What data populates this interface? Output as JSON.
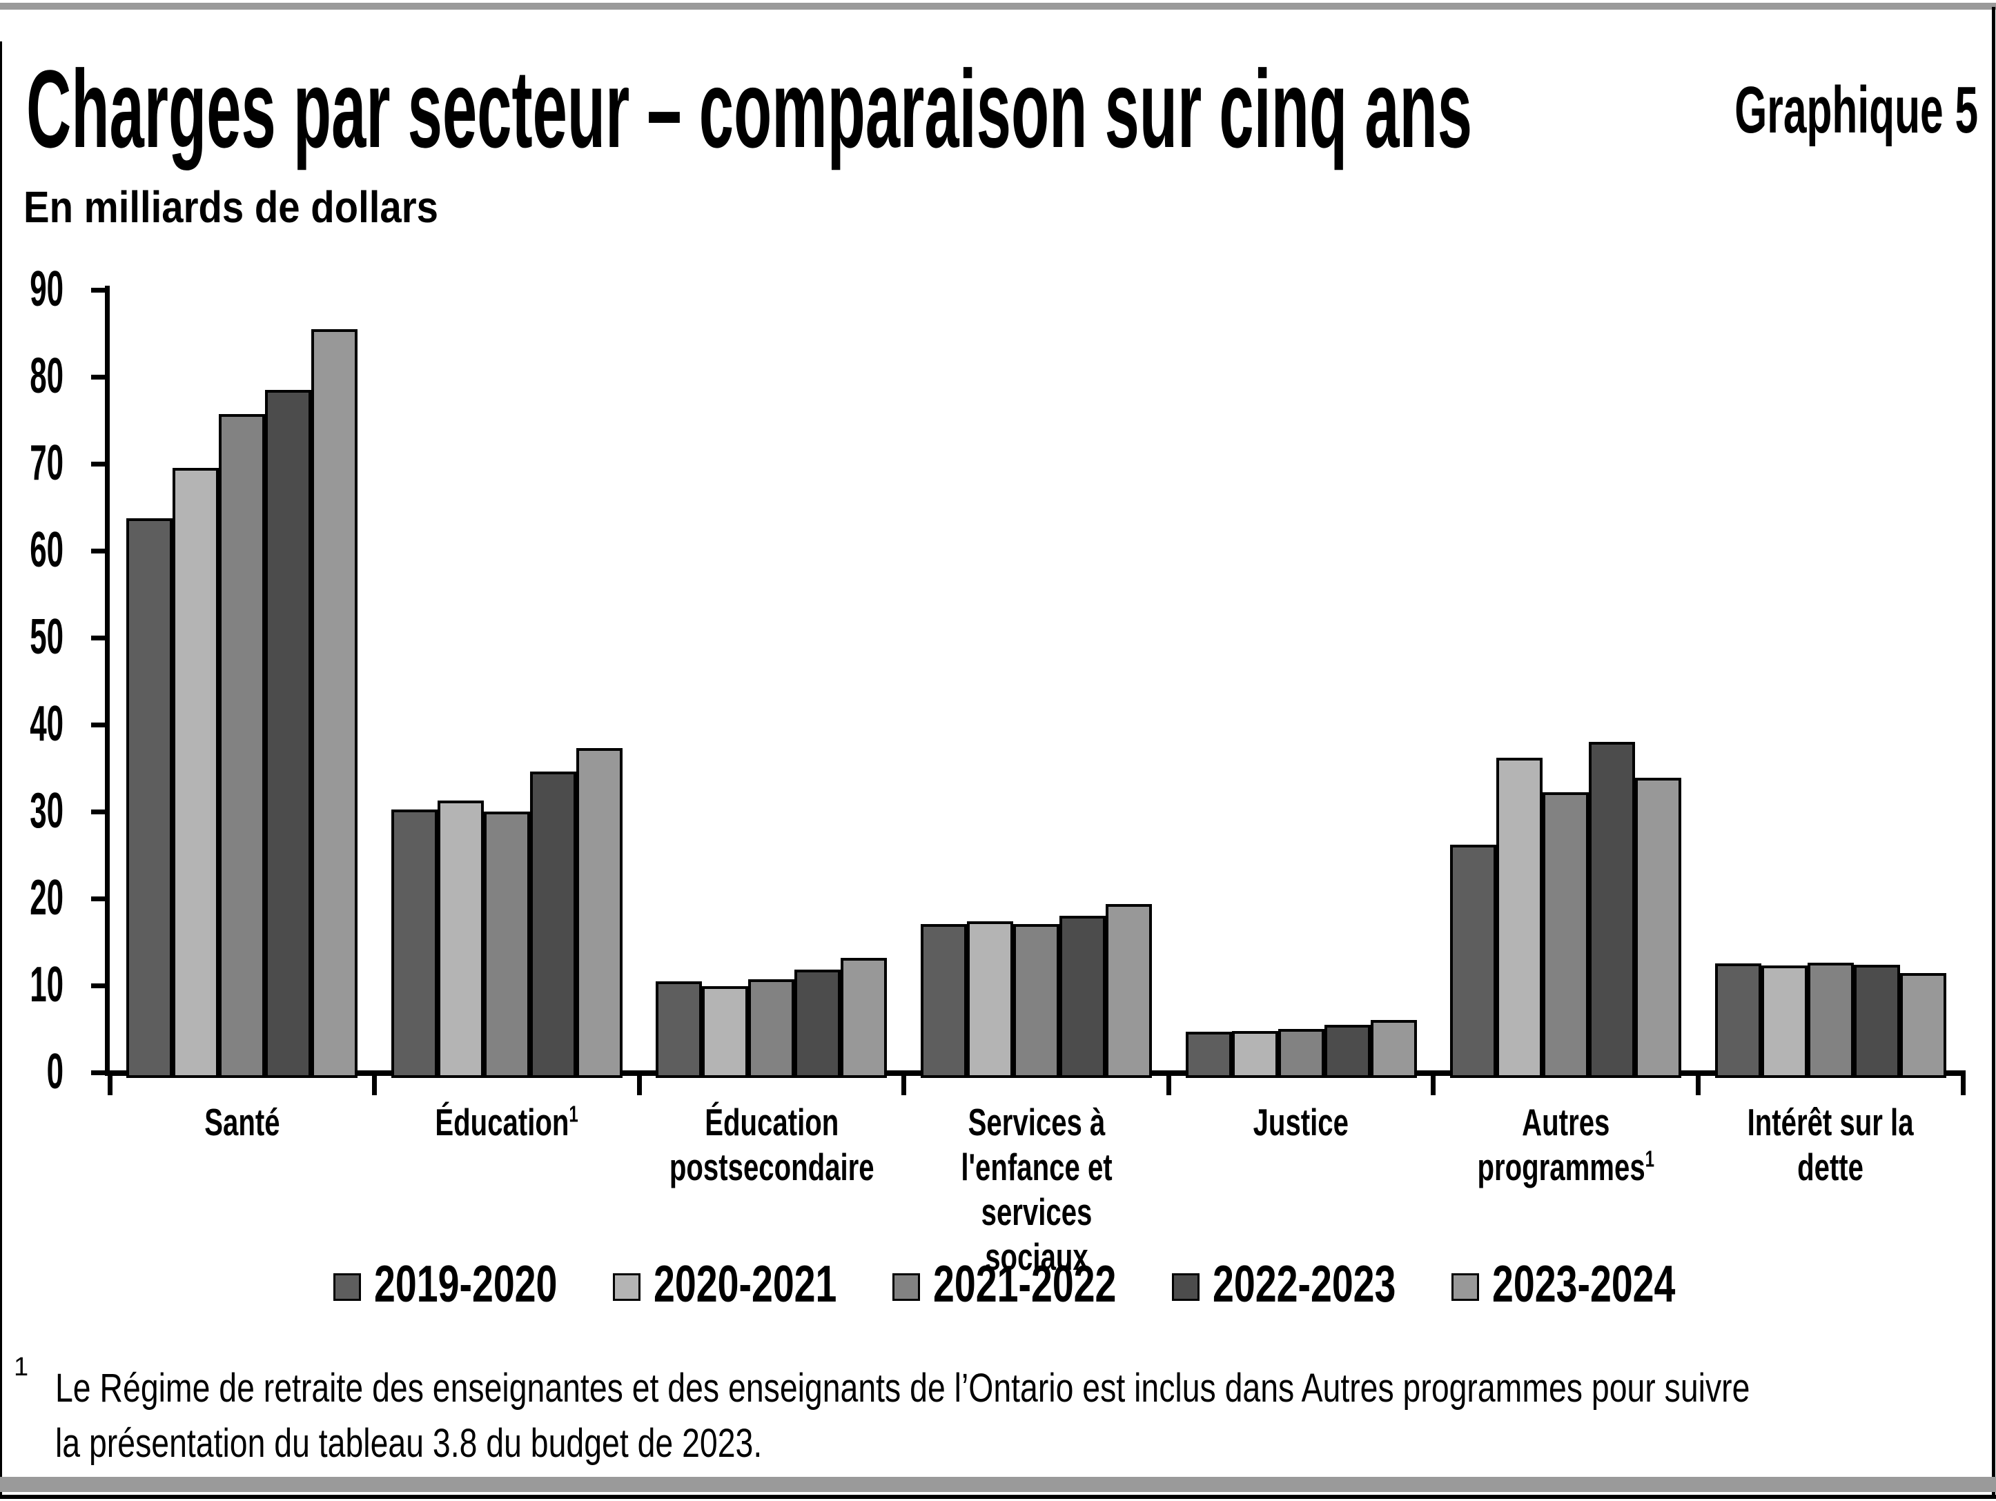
{
  "page": {
    "background": "#ffffff",
    "band_color": "#9a9a9a",
    "frame_color": "#000000"
  },
  "header": {
    "title": "Charges par secteur – comparaison sur cinq ans",
    "corner_label": "Graphique 5",
    "unit_label": "En milliards de dollars"
  },
  "footnote": {
    "marker": "1",
    "lines": [
      "Le Régime de retraite des enseignantes et des enseignants de l’Ontario est inclus dans Autres programmes pour suivre",
      "la présentation du tableau 3.8 du budget de 2023."
    ]
  },
  "chart_data": {
    "type": "bar",
    "title": "Charges par secteur – comparaison sur cinq ans",
    "subtitle": "Graphique 5",
    "ylabel": "En milliards de dollars",
    "xlabel": "",
    "ylim": [
      0,
      90
    ],
    "yticks": [
      0,
      10,
      20,
      30,
      40,
      50,
      60,
      70,
      80,
      90
    ],
    "grid": false,
    "legend_position": "bottom",
    "axis_color": "#000000",
    "bar_border_color": "#000000",
    "categories": [
      "Santé",
      "Éducation",
      "Éducation postsecondaire",
      "Services à l'enfance et services sociaux",
      "Justice",
      "Autres programmes",
      "Intérêt sur la dette"
    ],
    "category_label_lines": [
      [
        "Santé"
      ],
      [
        "Éducation"
      ],
      [
        "Éducation",
        "postsecondaire"
      ],
      [
        "Services à",
        "l'enfance et",
        "services sociaux"
      ],
      [
        "Justice"
      ],
      [
        "Autres",
        "programmes"
      ],
      [
        "Intérêt sur la",
        "dette"
      ]
    ],
    "category_has_footnote": [
      false,
      true,
      false,
      false,
      false,
      true,
      false
    ],
    "series": [
      {
        "name": "2019-2020",
        "color": "#5e5e5e",
        "values": [
          63.7,
          30.2,
          10.5,
          17.1,
          4.7,
          26.2,
          12.5
        ]
      },
      {
        "name": "2020-2021",
        "color": "#b4b4b4",
        "values": [
          69.5,
          31.3,
          9.9,
          17.4,
          4.8,
          36.2,
          12.3
        ]
      },
      {
        "name": "2021-2022",
        "color": "#828282",
        "values": [
          75.7,
          30.0,
          10.7,
          17.1,
          5.0,
          32.2,
          12.6
        ]
      },
      {
        "name": "2022-2023",
        "color": "#4c4c4c",
        "values": [
          78.5,
          34.6,
          11.8,
          18.0,
          5.5,
          38.0,
          12.4
        ]
      },
      {
        "name": "2023-2024",
        "color": "#989898",
        "values": [
          85.5,
          37.3,
          13.2,
          19.4,
          6.0,
          33.9,
          11.4
        ]
      }
    ]
  }
}
